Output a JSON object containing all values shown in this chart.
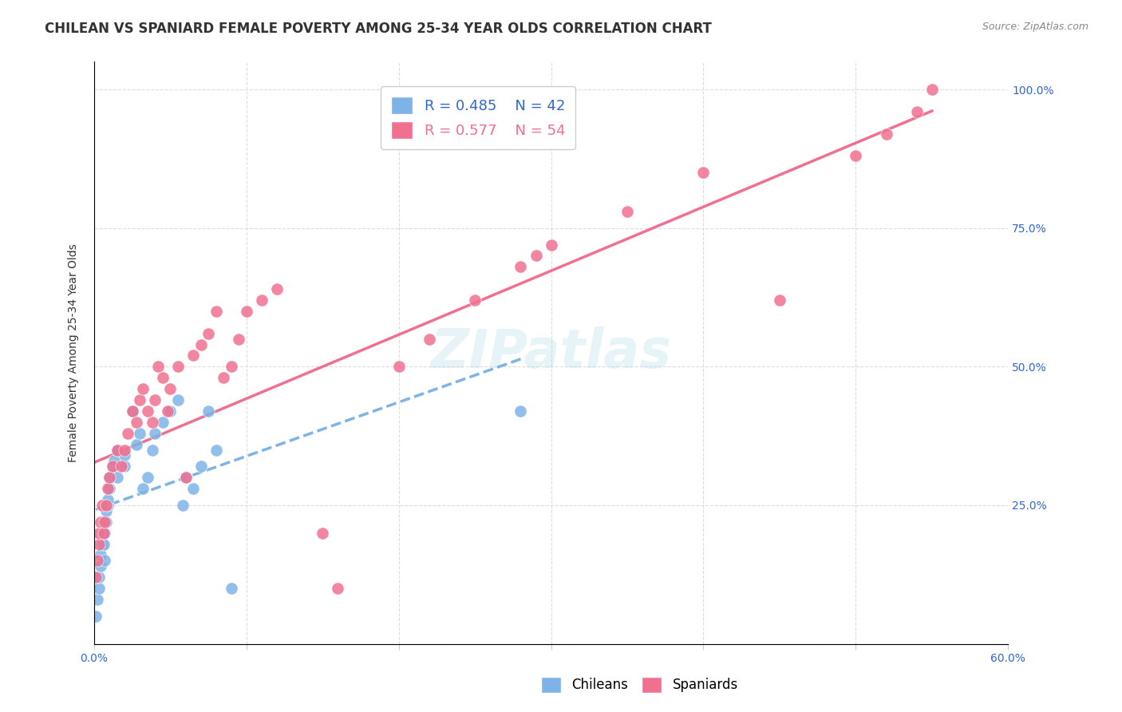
{
  "title": "CHILEAN VS SPANIARD FEMALE POVERTY AMONG 25-34 YEAR OLDS CORRELATION CHART",
  "source": "Source: ZipAtlas.com",
  "xlabel_bottom": "",
  "ylabel": "Female Poverty Among 25-34 Year Olds",
  "x_bottom_label": "",
  "xlim": [
    0.0,
    0.6
  ],
  "ylim": [
    0.0,
    1.05
  ],
  "xticks": [
    0.0,
    0.1,
    0.2,
    0.3,
    0.4,
    0.5,
    0.6
  ],
  "xticklabels": [
    "0.0%",
    "",
    "",
    "",
    "",
    "",
    "60.0%"
  ],
  "yticks_right": [
    0.0,
    0.25,
    0.5,
    0.75,
    1.0
  ],
  "ytick_right_labels": [
    "",
    "25.0%",
    "50.0%",
    "75.0%",
    "100.0%"
  ],
  "chilean_R": 0.485,
  "chilean_N": 42,
  "spaniard_R": 0.577,
  "spaniard_N": 54,
  "chilean_color": "#7eb3e8",
  "spaniard_color": "#f07090",
  "chilean_line_color": "#7eb3e8",
  "spaniard_line_color": "#f07090",
  "watermark_text": "ZIPatlas",
  "chileans_x": [
    0.001,
    0.002,
    0.003,
    0.003,
    0.004,
    0.004,
    0.005,
    0.005,
    0.006,
    0.006,
    0.007,
    0.007,
    0.008,
    0.008,
    0.009,
    0.009,
    0.01,
    0.01,
    0.012,
    0.013,
    0.015,
    0.015,
    0.02,
    0.02,
    0.025,
    0.028,
    0.03,
    0.032,
    0.035,
    0.038,
    0.04,
    0.045,
    0.05,
    0.055,
    0.058,
    0.06,
    0.065,
    0.07,
    0.075,
    0.08,
    0.09,
    0.28
  ],
  "chileans_y": [
    0.05,
    0.08,
    0.1,
    0.12,
    0.14,
    0.16,
    0.18,
    0.2,
    0.22,
    0.18,
    0.15,
    0.2,
    0.22,
    0.24,
    0.25,
    0.26,
    0.28,
    0.3,
    0.32,
    0.33,
    0.35,
    0.3,
    0.32,
    0.34,
    0.42,
    0.36,
    0.38,
    0.28,
    0.3,
    0.35,
    0.38,
    0.4,
    0.42,
    0.44,
    0.25,
    0.3,
    0.28,
    0.32,
    0.42,
    0.35,
    0.1,
    0.42
  ],
  "spaniards_x": [
    0.001,
    0.002,
    0.003,
    0.003,
    0.004,
    0.005,
    0.006,
    0.007,
    0.008,
    0.009,
    0.01,
    0.012,
    0.015,
    0.018,
    0.02,
    0.022,
    0.025,
    0.028,
    0.03,
    0.032,
    0.035,
    0.038,
    0.04,
    0.042,
    0.045,
    0.048,
    0.05,
    0.055,
    0.06,
    0.065,
    0.07,
    0.075,
    0.08,
    0.085,
    0.09,
    0.095,
    0.1,
    0.11,
    0.12,
    0.15,
    0.16,
    0.2,
    0.22,
    0.25,
    0.28,
    0.29,
    0.3,
    0.35,
    0.4,
    0.45,
    0.5,
    0.52,
    0.54,
    0.55
  ],
  "spaniards_y": [
    0.12,
    0.15,
    0.18,
    0.2,
    0.22,
    0.25,
    0.2,
    0.22,
    0.25,
    0.28,
    0.3,
    0.32,
    0.35,
    0.32,
    0.35,
    0.38,
    0.42,
    0.4,
    0.44,
    0.46,
    0.42,
    0.4,
    0.44,
    0.5,
    0.48,
    0.42,
    0.46,
    0.5,
    0.3,
    0.52,
    0.54,
    0.56,
    0.6,
    0.48,
    0.5,
    0.55,
    0.6,
    0.62,
    0.64,
    0.2,
    0.1,
    0.5,
    0.55,
    0.62,
    0.68,
    0.7,
    0.72,
    0.78,
    0.85,
    0.62,
    0.88,
    0.92,
    0.96,
    1.0
  ],
  "grid_color": "#dddddd",
  "title_fontsize": 12,
  "axis_label_fontsize": 10,
  "tick_fontsize": 10,
  "legend_fontsize": 13
}
